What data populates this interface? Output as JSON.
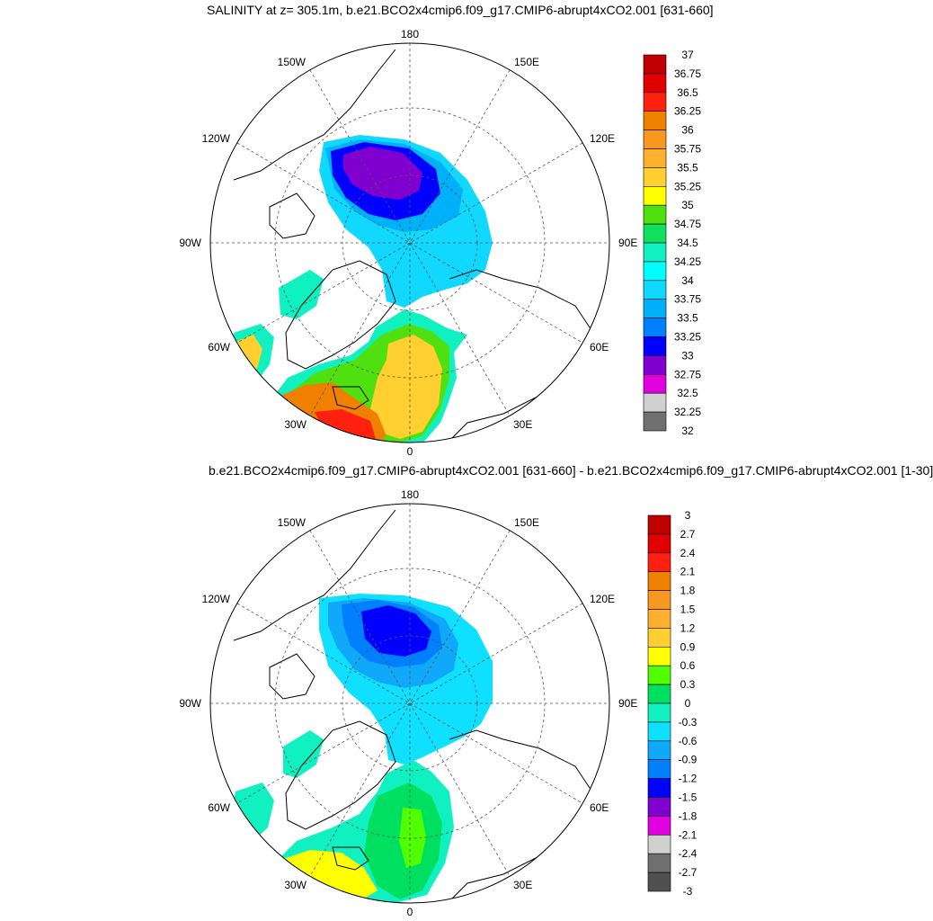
{
  "panels": [
    {
      "title": "SALINITY at z= 305.1m, b.e21.BCO2x4cmip6.f09_g17.CMIP6-abrupt4xCO2.001 [631-660]",
      "lon_labels": {
        "top": "180",
        "bottom": "0",
        "left": "90W",
        "right": "90E",
        "upper_left": "150W",
        "upper_right": "150E",
        "left_upper": "120W",
        "right_upper": "120E",
        "left_lower": "60W",
        "right_lower": "60E",
        "lower_left": "30W",
        "lower_right": "30E"
      },
      "colorbar": {
        "levels": [
          "37",
          "36.75",
          "36.5",
          "36.25",
          "36",
          "35.75",
          "35.5",
          "35.25",
          "35",
          "34.75",
          "34.5",
          "34.25",
          "34",
          "33.75",
          "33.5",
          "33.25",
          "33",
          "32.75",
          "32.5",
          "32.25",
          "32"
        ],
        "colors": [
          "#c00000",
          "#e00000",
          "#ff2010",
          "#f08000",
          "#f89820",
          "#ffb030",
          "#ffd030",
          "#ffff00",
          "#50e010",
          "#10e060",
          "#10f0c0",
          "#00ffff",
          "#10d8ff",
          "#00b0f8",
          "#0080ff",
          "#0000ff",
          "#8000d0",
          "#e000e0",
          "#d0d0d0",
          "#707070"
        ]
      }
    },
    {
      "title": "b.e21.BCO2x4cmip6.f09_g17.CMIP6-abrupt4xCO2.001 [631-660] - b.e21.BCO2x4cmip6.f09_g17.CMIP6-abrupt4xCO2.001 [1-30]",
      "lon_labels": {
        "top": "180",
        "bottom": "0",
        "left": "90W",
        "right": "90E",
        "upper_left": "150W",
        "upper_right": "150E",
        "left_upper": "120W",
        "right_upper": "120E",
        "left_lower": "60W",
        "right_lower": "60E",
        "lower_left": "30W",
        "lower_right": "30E"
      },
      "colorbar": {
        "levels": [
          "3",
          "2.7",
          "2.4",
          "2.1",
          "1.8",
          "1.5",
          "1.2",
          "0.9",
          "0.6",
          "0.3",
          "0",
          "-0.3",
          "-0.6",
          "-0.9",
          "-1.2",
          "-1.5",
          "-1.8",
          "-2.1",
          "-2.4",
          "-2.7",
          "-3"
        ],
        "colors": [
          "#c00000",
          "#e00000",
          "#ff2010",
          "#f08000",
          "#f89820",
          "#ffb030",
          "#ffd030",
          "#ffff00",
          "#50ff00",
          "#00e060",
          "#10f0c0",
          "#10e0ff",
          "#10a8f8",
          "#0080ff",
          "#0000ff",
          "#8000d0",
          "#e000e0",
          "#d0d0d0",
          "#707070",
          "#505050"
        ]
      }
    }
  ]
}
